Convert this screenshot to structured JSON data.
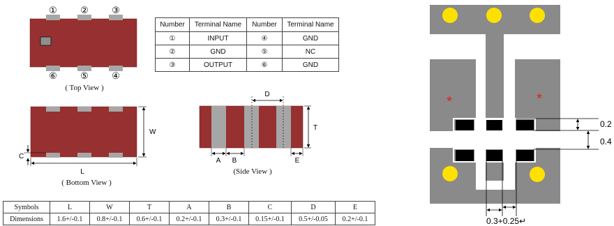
{
  "top_view": {
    "pin_labels_top": [
      "①",
      "②",
      "③"
    ],
    "pin_labels_bottom": [
      "⑥",
      "⑤",
      "④"
    ],
    "caption": "( Top View )"
  },
  "terminal_table": {
    "headers": [
      "Number",
      "Terminal Name",
      "Number",
      "Terminal Name"
    ],
    "rows": [
      [
        "①",
        "INPUT",
        "④",
        "GND"
      ],
      [
        "②",
        "GND",
        "⑤",
        "NC"
      ],
      [
        "③",
        "OUTPUT",
        "⑥",
        "GND"
      ]
    ]
  },
  "bottom_view": {
    "dim_w": "W",
    "dim_c": "C",
    "dim_l": "L",
    "caption": "( Bottom View )"
  },
  "side_view": {
    "dim_d": "D",
    "dim_t": "T",
    "dim_a": "A",
    "dim_b": "B",
    "dim_e": "E",
    "caption": "(Side View )"
  },
  "dimension_table": {
    "headers": [
      "Symbols",
      "L",
      "W",
      "T",
      "A",
      "B",
      "C",
      "D",
      "E"
    ],
    "row_label": "Dimensions",
    "values": [
      "1.6+/-0.1",
      "0.8+/-0.1",
      "0.6+/-0.1",
      "0.2+/-0.1",
      "0.3+/-0.1",
      "0.15+/-0.1",
      "0.5+/-0.05",
      "0.2+/-0.1"
    ]
  },
  "land_pattern": {
    "marker_left": "*",
    "marker_right": "*",
    "dim_1": "0.2",
    "dim_2": "0.4",
    "dim_bottom": "0.3+0.25↵"
  },
  "colors": {
    "body": "#973030",
    "terminal": "#a6a6a6",
    "pad": "#8a8a8a",
    "via": "#ffe100",
    "marker": "#e0201a"
  }
}
